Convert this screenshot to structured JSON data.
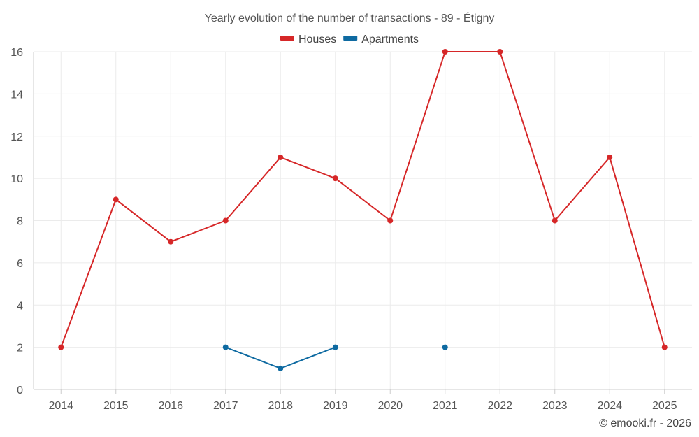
{
  "chart_data": {
    "type": "line",
    "title": "Yearly evolution of the number of transactions - 89 - Étigny",
    "xlabel": "",
    "ylabel": "",
    "categories": [
      "2014",
      "2015",
      "2016",
      "2017",
      "2018",
      "2019",
      "2020",
      "2021",
      "2022",
      "2023",
      "2024",
      "2025"
    ],
    "ylim": [
      0,
      16
    ],
    "yticks": [
      0,
      2,
      4,
      6,
      8,
      10,
      12,
      14,
      16
    ],
    "grid": true,
    "legend_position": "top-center",
    "series": [
      {
        "name": "Houses",
        "color": "#d62728",
        "values": [
          2,
          9,
          7,
          8,
          11,
          10,
          8,
          16,
          16,
          8,
          11,
          2
        ]
      },
      {
        "name": "Apartments",
        "color": "#0e6aa1",
        "values": [
          null,
          null,
          null,
          2,
          1,
          2,
          null,
          2,
          null,
          null,
          null,
          null
        ]
      }
    ]
  },
  "credit": "© emooki.fr - 2026"
}
